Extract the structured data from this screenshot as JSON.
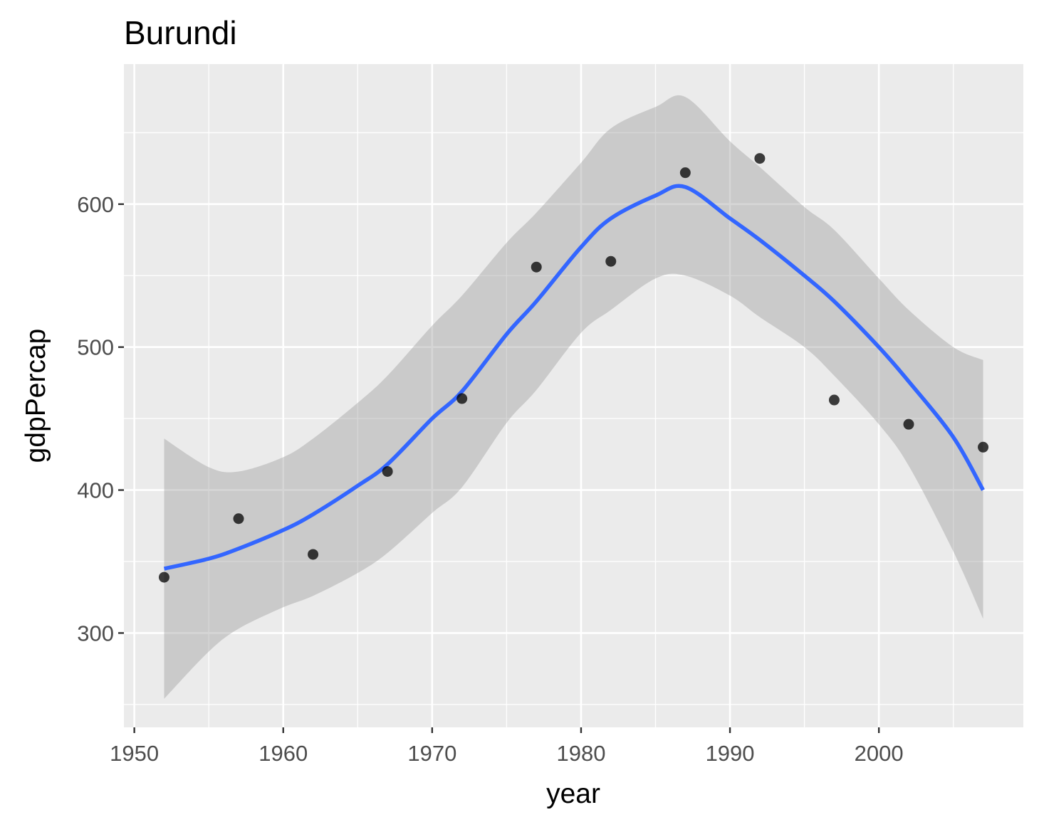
{
  "chart_data": {
    "type": "scatter",
    "title": "Burundi",
    "xlabel": "year",
    "ylabel": "gdpPercap",
    "xlim": [
      1949.3,
      2009.7
    ],
    "ylim": [
      234,
      698
    ],
    "xticks": [
      1950,
      1960,
      1970,
      1980,
      1990,
      2000
    ],
    "xtick_labels": [
      "1950",
      "1960",
      "1970",
      "1980",
      "1990",
      "2000"
    ],
    "yticks": [
      300,
      400,
      500,
      600
    ],
    "ytick_labels": [
      "300",
      "400",
      "500",
      "600"
    ],
    "grid": true,
    "panel_color": "#ebebeb",
    "point_color": "#000000",
    "smooth_color": "#3366ff",
    "ribbon_color": "#999999",
    "points": {
      "x": [
        1952,
        1957,
        1962,
        1967,
        1972,
        1977,
        1982,
        1987,
        1992,
        1997,
        2002,
        2007
      ],
      "y": [
        339,
        380,
        355,
        413,
        464,
        556,
        560,
        622,
        632,
        463,
        446,
        430
      ]
    },
    "smooth": {
      "method": "loess",
      "x": [
        1952,
        1955,
        1957,
        1960,
        1962,
        1965,
        1967,
        1970,
        1972,
        1975,
        1977,
        1980,
        1982,
        1985,
        1987,
        1990,
        1992,
        1995,
        1997,
        2000,
        2002,
        2005,
        2007
      ],
      "y": [
        345,
        352,
        359,
        372,
        383,
        403,
        418,
        450,
        469,
        509,
        532,
        570,
        590,
        606,
        612,
        590,
        575,
        550,
        532,
        500,
        476,
        437,
        400
      ],
      "lower": [
        254,
        287,
        303,
        318,
        326,
        342,
        356,
        384,
        402,
        447,
        470,
        510,
        526,
        548,
        550,
        536,
        521,
        500,
        480,
        446,
        417,
        357,
        310
      ],
      "upper": [
        436,
        416,
        413,
        423,
        436,
        461,
        480,
        515,
        536,
        573,
        594,
        629,
        653,
        668,
        675,
        644,
        626,
        598,
        582,
        548,
        526,
        500,
        491
      ]
    }
  }
}
